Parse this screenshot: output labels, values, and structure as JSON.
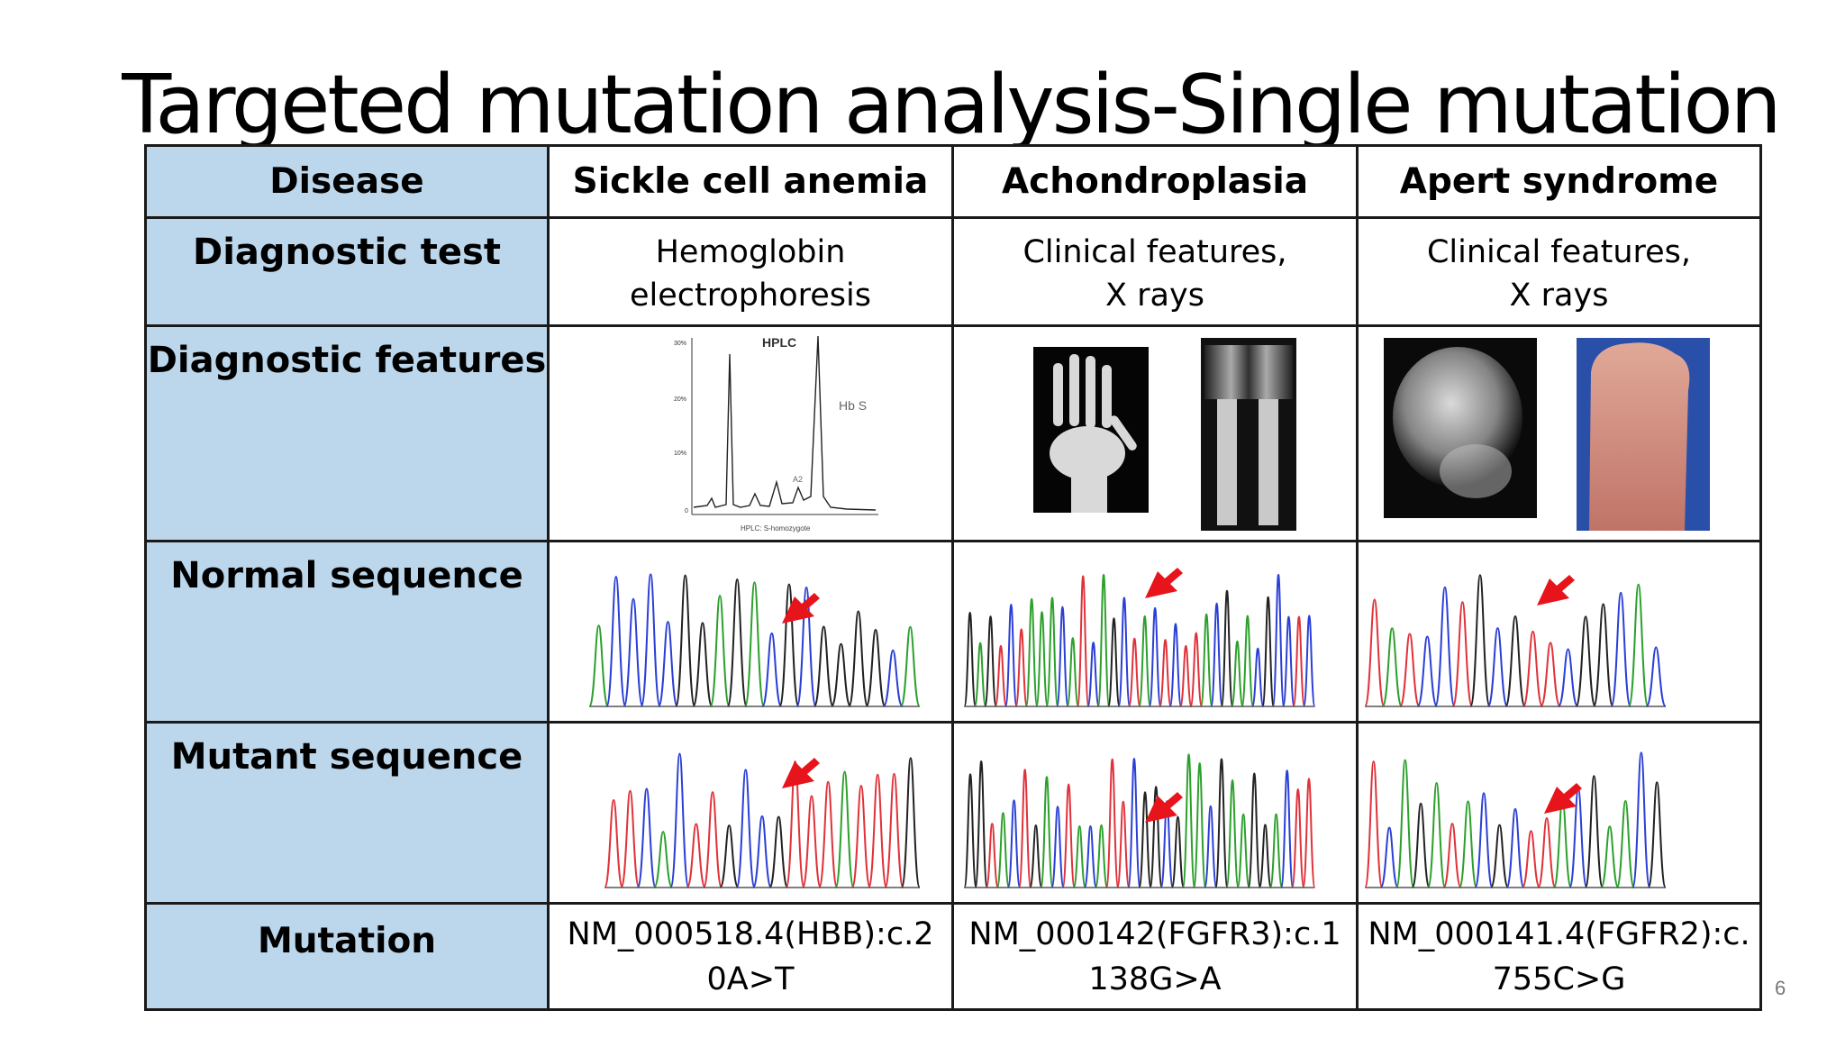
{
  "slide": {
    "title": "Targeted mutation analysis-Single mutation",
    "page_number": "6"
  },
  "table": {
    "row_headers": {
      "disease": "Disease",
      "diagnostic_test": "Diagnostic test",
      "diagnostic_features": "Diagnostic features",
      "normal_sequence": "Normal sequence",
      "mutant_sequence": "Mutant sequence",
      "mutation": "Mutation"
    },
    "columns": [
      {
        "disease": "Sickle cell anemia",
        "test_line1": "Hemoglobin",
        "test_line2": "electrophoresis",
        "mutation_line1": "NM_000518.4(HBB):c.2",
        "mutation_line2": "0A>T"
      },
      {
        "disease": "Achondroplasia",
        "test_line1": "Clinical features,",
        "test_line2": "X rays",
        "mutation_line1": "NM_000142(FGFR3):c.1",
        "mutation_line2": "138G>A"
      },
      {
        "disease": "Apert syndrome",
        "test_line1": "Clinical features,",
        "test_line2": "X rays",
        "mutation_line1": "NM_000141.4(FGFR2):c.",
        "mutation_line2": "755C>G"
      }
    ],
    "hplc_chart": {
      "title": "HPLC",
      "peak_label": "Hb S",
      "small_peak_label": "A2",
      "caption": "HPLC: S-homozygote",
      "y_ticks": [
        "30%",
        "20%",
        "10%",
        "0"
      ]
    }
  },
  "colors": {
    "header_fill": "#bcd7ec",
    "border": "#1a1a1a",
    "arrow": "#e8141b",
    "trace_a": "#2ca02c",
    "trace_c": "#2b3fd6",
    "trace_g": "#222222",
    "trace_t": "#e0323a"
  }
}
